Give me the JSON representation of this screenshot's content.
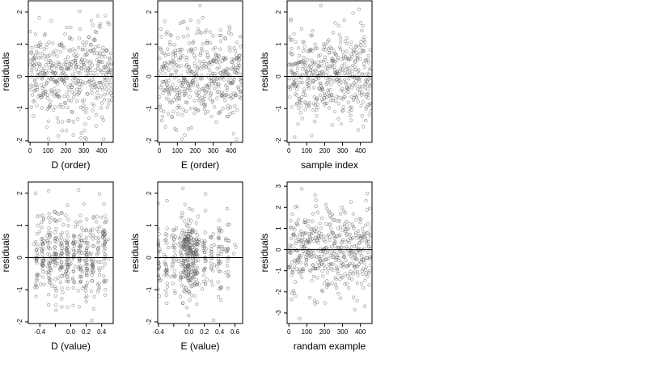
{
  "figure": {
    "chart_data": [
      {
        "type": "scatter",
        "xlabel": "D (order)",
        "ylabel": "residuals",
        "xlim": [
          -10,
          465
        ],
        "ylim": [
          -2.05,
          2.35
        ],
        "xticks": [
          0,
          100,
          200,
          300,
          400
        ],
        "xtick_labels": [
          "0",
          "100",
          "200",
          "300",
          "400"
        ],
        "yticks": [
          -2,
          -1,
          0,
          1,
          2
        ],
        "ytick_labels": [
          "-2",
          "-1",
          "0",
          "1",
          "2"
        ],
        "hline": 0,
        "points": []
      },
      {
        "type": "scatter",
        "xlabel": "E (order)",
        "ylabel": "residuals",
        "xlim": [
          -10,
          465
        ],
        "ylim": [
          -2.05,
          2.35
        ],
        "xticks": [
          0,
          100,
          200,
          300,
          400
        ],
        "xtick_labels": [
          "0",
          "100",
          "200",
          "300",
          "400"
        ],
        "yticks": [
          -2,
          -1,
          0,
          1,
          2
        ],
        "ytick_labels": [
          "-2",
          "-1",
          "0",
          "1",
          "2"
        ],
        "hline": 0,
        "points": []
      },
      {
        "type": "scatter",
        "xlabel": "sample index",
        "ylabel": "residuals",
        "xlim": [
          -10,
          465
        ],
        "ylim": [
          -2.05,
          2.35
        ],
        "xticks": [
          0,
          100,
          200,
          300,
          400
        ],
        "xtick_labels": [
          "0",
          "100",
          "200",
          "300",
          "400"
        ],
        "yticks": [
          -2,
          -1,
          0,
          1,
          2
        ],
        "ytick_labels": [
          "-2",
          "-1",
          "0",
          "1",
          "2"
        ],
        "hline": 0,
        "points": []
      },
      {
        "type": "scatter",
        "xlabel": "D (value)",
        "ylabel": "residuals",
        "xlim": [
          -0.55,
          0.55
        ],
        "ylim": [
          -2.05,
          2.35
        ],
        "xticks": [
          -0.4,
          -0.2,
          0,
          0.2,
          0.4
        ],
        "xtick_labels": [
          "-0.4",
          "",
          "0.0",
          "0.2",
          "0.4"
        ],
        "yticks": [
          -2,
          -1,
          0,
          1,
          2
        ],
        "ytick_labels": [
          "-2",
          "-1",
          "0",
          "1",
          "2"
        ],
        "hline": 0,
        "points": []
      },
      {
        "type": "scatter",
        "xlabel": "E (value)",
        "ylabel": "residuals",
        "xlim": [
          -0.41,
          0.7
        ],
        "ylim": [
          -2.05,
          2.35
        ],
        "xticks": [
          -0.4,
          -0.2,
          0,
          0.2,
          0.4,
          0.6
        ],
        "xtick_labels": [
          "-0.4",
          "",
          "0.0",
          "0.2",
          "0.4",
          "0.6"
        ],
        "yticks": [
          -2,
          -1,
          0,
          1,
          2
        ],
        "ytick_labels": [
          "-2",
          "-1",
          "0",
          "1",
          "2"
        ],
        "hline": 0,
        "points": []
      },
      {
        "type": "scatter",
        "xlabel": "randam example",
        "ylabel": "residuals",
        "xlim": [
          -10,
          465
        ],
        "ylim": [
          -3.5,
          3.2
        ],
        "xticks": [
          0,
          100,
          200,
          300,
          400
        ],
        "xtick_labels": [
          "0",
          "100",
          "200",
          "300",
          "400"
        ],
        "yticks": [
          -3,
          -2,
          -1,
          0,
          1,
          2,
          3
        ],
        "ytick_labels": [
          "-3",
          "-2",
          "-1",
          "0",
          "1",
          "2",
          "3"
        ],
        "hline": 0,
        "points": []
      }
    ]
  }
}
